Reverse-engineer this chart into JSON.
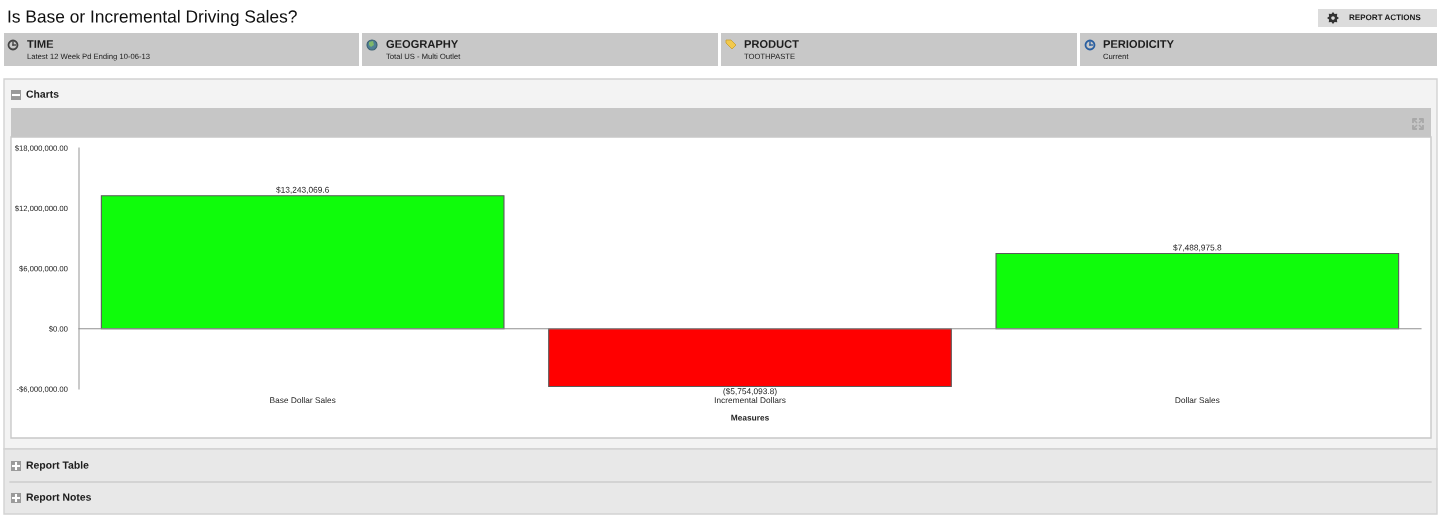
{
  "chart_data": {
    "type": "bar",
    "title": "Is Base or Incremental Driving Sales?",
    "xlabel": "Measures",
    "categories": [
      "Base Dollar Sales",
      "Incremental Dollars",
      "Dollar Sales"
    ],
    "values": [
      13243069.6,
      -5754093.8,
      7488975.8
    ],
    "colors": [
      "#0ffc0b",
      "#ff0000",
      "#0ffc0b"
    ],
    "value_labels": [
      "$13,243,069.6",
      "($5,754,093.8)",
      "$7,488,975.8"
    ],
    "ylim": [
      -6000000,
      18000000
    ],
    "yticks": [
      {
        "value": -6000000,
        "label": "-$6,000,000.00"
      },
      {
        "value": 0,
        "label": "$0.00"
      },
      {
        "value": 6000000,
        "label": "$6,000,000.00"
      },
      {
        "value": 12000000,
        "label": "$12,000,000.00"
      },
      {
        "value": 18000000,
        "label": "$18,000,000.00"
      }
    ],
    "annotations": [
      "TIME",
      "Latest 12 Week Pd Ending 10-06-13",
      "GEOGRAPHY",
      "Total US - Multi Outlet",
      "PRODUCT",
      "TOOTHPASTE",
      "PERIODICITY",
      "Current",
      "REPORT ACTIONS",
      "Charts",
      "Report Table",
      "Report Notes"
    ]
  }
}
